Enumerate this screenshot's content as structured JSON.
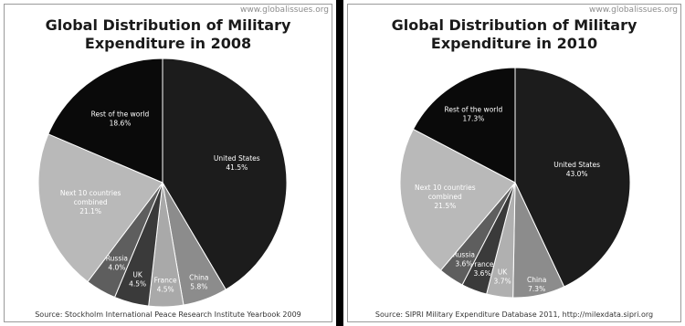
{
  "chart_data": [
    {
      "type": "pie",
      "watermark": "www.globalissues.org",
      "title": "Global Distribution of Military\nExpenditure in 2008",
      "source": "Source: Stockholm International Peace Research Institute Yearbook 2009",
      "slices": [
        {
          "label": "United States",
          "value": 41.5,
          "value_label": "41.5%",
          "color": "#1c1c1c",
          "text_color": "#ffffff"
        },
        {
          "label": "China",
          "value": 5.8,
          "value_label": "5.8%",
          "color": "#8c8c8c",
          "text_color": "#ffffff"
        },
        {
          "label": "France",
          "value": 4.5,
          "value_label": "4.5%",
          "color": "#a9a9a9",
          "text_color": "#ffffff"
        },
        {
          "label": "UK",
          "value": 4.5,
          "value_label": "4.5%",
          "color": "#3a3a3a",
          "text_color": "#ffffff"
        },
        {
          "label": "Russia",
          "value": 4.0,
          "value_label": "4.0%",
          "color": "#5e5e5e",
          "text_color": "#ffffff"
        },
        {
          "label": "Next 10 countries combined",
          "value": 21.1,
          "value_label": "21.1%",
          "color": "#b9b9b9",
          "text_color": "#ffffff"
        },
        {
          "label": "Rest of the world",
          "value": 18.6,
          "value_label": "18.6%",
          "color": "#0a0a0a",
          "text_color": "#ffffff"
        }
      ]
    },
    {
      "type": "pie",
      "watermark": "www.globalissues.org",
      "title": "Global Distribution of Military\nExpenditure in 2010",
      "source": "Source: SIPRI Military Expenditure Database 2011, http://milexdata.sipri.org",
      "slices": [
        {
          "label": "United States",
          "value": 43.0,
          "value_label": "43.0%",
          "color": "#1c1c1c",
          "text_color": "#ffffff"
        },
        {
          "label": "China",
          "value": 7.3,
          "value_label": "7.3%",
          "color": "#8c8c8c",
          "text_color": "#ffffff"
        },
        {
          "label": "UK",
          "value": 3.7,
          "value_label": "3.7%",
          "color": "#b0b0b0",
          "text_color": "#ffffff"
        },
        {
          "label": "France",
          "value": 3.6,
          "value_label": "3.6%",
          "color": "#3a3a3a",
          "text_color": "#ffffff"
        },
        {
          "label": "Russia",
          "value": 3.6,
          "value_label": "3.6%",
          "color": "#5e5e5e",
          "text_color": "#ffffff"
        },
        {
          "label": "Next 10 countries combined",
          "value": 21.5,
          "value_label": "21.5%",
          "color": "#b9b9b9",
          "text_color": "#ffffff"
        },
        {
          "label": "Rest of the world",
          "value": 17.3,
          "value_label": "17.3%",
          "color": "#0a0a0a",
          "text_color": "#ffffff"
        }
      ]
    }
  ]
}
